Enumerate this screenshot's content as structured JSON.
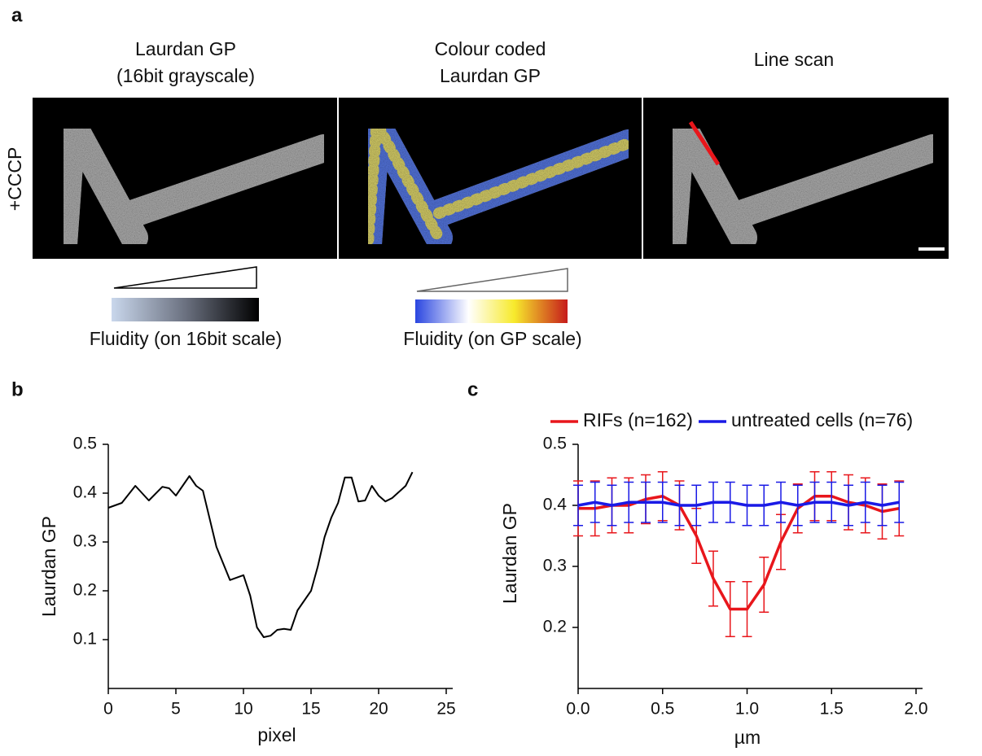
{
  "panel_labels": [
    "a",
    "b",
    "c"
  ],
  "panel_a": {
    "columns": [
      {
        "title": [
          "Laurdan GP",
          "(16bit grayscale)"
        ]
      },
      {
        "title": [
          "Colour coded",
          "Laurdan GP"
        ]
      },
      {
        "title": [
          "Line scan"
        ]
      }
    ],
    "row_label": "+CCCP",
    "scales": [
      "Fluidity (on 16bit scale)",
      "Fluidity (on GP scale)"
    ]
  },
  "chart_data": [
    {
      "type": "line",
      "xlabel": "pixel",
      "ylabel": "Laurdan GP",
      "x": [
        0,
        1,
        2,
        3,
        4,
        4.5,
        5,
        6,
        6.5,
        7,
        8,
        9,
        10,
        10.5,
        11,
        11.5,
        12,
        12.5,
        13,
        13.5,
        14,
        15,
        15.5,
        16,
        16.5,
        17,
        17.5,
        18,
        18.5,
        19,
        19.5,
        20,
        20.5,
        21,
        22,
        22.5
      ],
      "series": [
        {
          "color": "#000000",
          "values": [
            0.37,
            0.38,
            0.415,
            0.385,
            0.413,
            0.41,
            0.395,
            0.435,
            0.415,
            0.405,
            0.29,
            0.222,
            0.232,
            0.19,
            0.125,
            0.105,
            0.108,
            0.12,
            0.122,
            0.12,
            0.16,
            0.2,
            0.25,
            0.31,
            0.35,
            0.38,
            0.432,
            0.432,
            0.383,
            0.385,
            0.415,
            0.395,
            0.383,
            0.39,
            0.415,
            0.443
          ]
        }
      ],
      "xlim": [
        0,
        25
      ],
      "xticks": [
        0,
        5,
        10,
        15,
        20,
        25
      ],
      "ylim": [
        0,
        0.5
      ],
      "yticks": [
        0.1,
        0.2,
        0.3,
        0.4,
        0.5
      ]
    },
    {
      "type": "line",
      "xlabel": "µm",
      "ylabel": "Laurdan GP",
      "legend": "top",
      "x": [
        0,
        0.1,
        0.2,
        0.3,
        0.4,
        0.5,
        0.6,
        0.7,
        0.8,
        0.9,
        1.0,
        1.1,
        1.2,
        1.3,
        1.4,
        1.5,
        1.6,
        1.7,
        1.8,
        1.9
      ],
      "series": [
        {
          "name": "RIFs (n=162)",
          "color": "#e8161b",
          "values": [
            0.395,
            0.395,
            0.4,
            0.4,
            0.41,
            0.415,
            0.4,
            0.35,
            0.28,
            0.23,
            0.23,
            0.27,
            0.34,
            0.395,
            0.415,
            0.415,
            0.405,
            0.4,
            0.39,
            0.395
          ],
          "errors": [
            0.045,
            0.045,
            0.045,
            0.045,
            0.04,
            0.04,
            0.04,
            0.045,
            0.045,
            0.045,
            0.045,
            0.045,
            0.045,
            0.04,
            0.04,
            0.04,
            0.045,
            0.045,
            0.045,
            0.045
          ]
        },
        {
          "name": "untreated cells (n=76)",
          "color": "#1a1ae6",
          "values": [
            0.4,
            0.405,
            0.4,
            0.405,
            0.405,
            0.405,
            0.4,
            0.4,
            0.405,
            0.405,
            0.4,
            0.4,
            0.405,
            0.4,
            0.405,
            0.405,
            0.4,
            0.405,
            0.4,
            0.405
          ],
          "errors": [
            0.033,
            0.033,
            0.033,
            0.033,
            0.033,
            0.033,
            0.033,
            0.033,
            0.033,
            0.033,
            0.033,
            0.033,
            0.033,
            0.033,
            0.033,
            0.033,
            0.033,
            0.033,
            0.033,
            0.033
          ]
        }
      ],
      "xlim": [
        0,
        2
      ],
      "xticks": [
        {
          "value": 0,
          "label": "0.0"
        },
        0.5,
        {
          "value": 1,
          "label": "1.0"
        },
        1.5,
        {
          "value": 2,
          "label": "2.0"
        }
      ],
      "ylim": [
        0.1,
        0.5
      ],
      "yticks": [
        0.2,
        0.3,
        0.4,
        0.5
      ]
    }
  ]
}
